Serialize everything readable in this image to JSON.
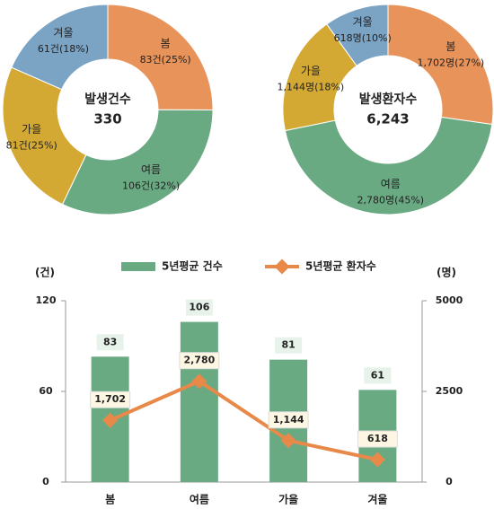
{
  "chart_data": [
    {
      "type": "donut",
      "center_label": "발생건수",
      "total": 330,
      "categories": [
        "봄",
        "여름",
        "가을",
        "겨울"
      ],
      "values": [
        83,
        106,
        81,
        61
      ],
      "value_labels": [
        "83건(25%)",
        "106건(32%)",
        "81건(25%)",
        "61건(18%)"
      ],
      "colors": [
        "#e8935a",
        "#6aaa82",
        "#d4a933",
        "#7aa3c4"
      ]
    },
    {
      "type": "donut",
      "center_label": "발생환자수",
      "total": {
        "value": 6243,
        "label": "6,243"
      },
      "categories": [
        "봄",
        "여름",
        "가을",
        "겨울"
      ],
      "values": [
        1702,
        2780,
        1144,
        618
      ],
      "value_labels": [
        "1,702명(27%)",
        "2,780명(45%)",
        "1,144명(18%)",
        "618명(10%)"
      ],
      "colors": [
        "#e8935a",
        "#6aaa82",
        "#d4a933",
        "#7aa3c4"
      ]
    },
    {
      "type": "combo",
      "y_label": "(건)",
      "y2_label": "(명)",
      "categories": [
        "봄",
        "여름",
        "가을",
        "겨울"
      ],
      "series": [
        {
          "name": "5년평균 건수",
          "kind": "bar",
          "color": "#6aaa82",
          "values": [
            83,
            106,
            81,
            61
          ]
        },
        {
          "name": "5년평균 환자수",
          "kind": "line",
          "axis": "y2",
          "color": "#e8894a",
          "values": [
            1702,
            2780,
            1144,
            618
          ],
          "value_labels": [
            "1,702",
            "2,780",
            "1,144",
            "618"
          ]
        }
      ],
      "ylim": [
        0,
        120
      ],
      "yticks": [
        0,
        60,
        120
      ],
      "y2lim": [
        0,
        5000
      ],
      "y2ticks": [
        0,
        2500,
        5000
      ],
      "legend": "top"
    }
  ]
}
